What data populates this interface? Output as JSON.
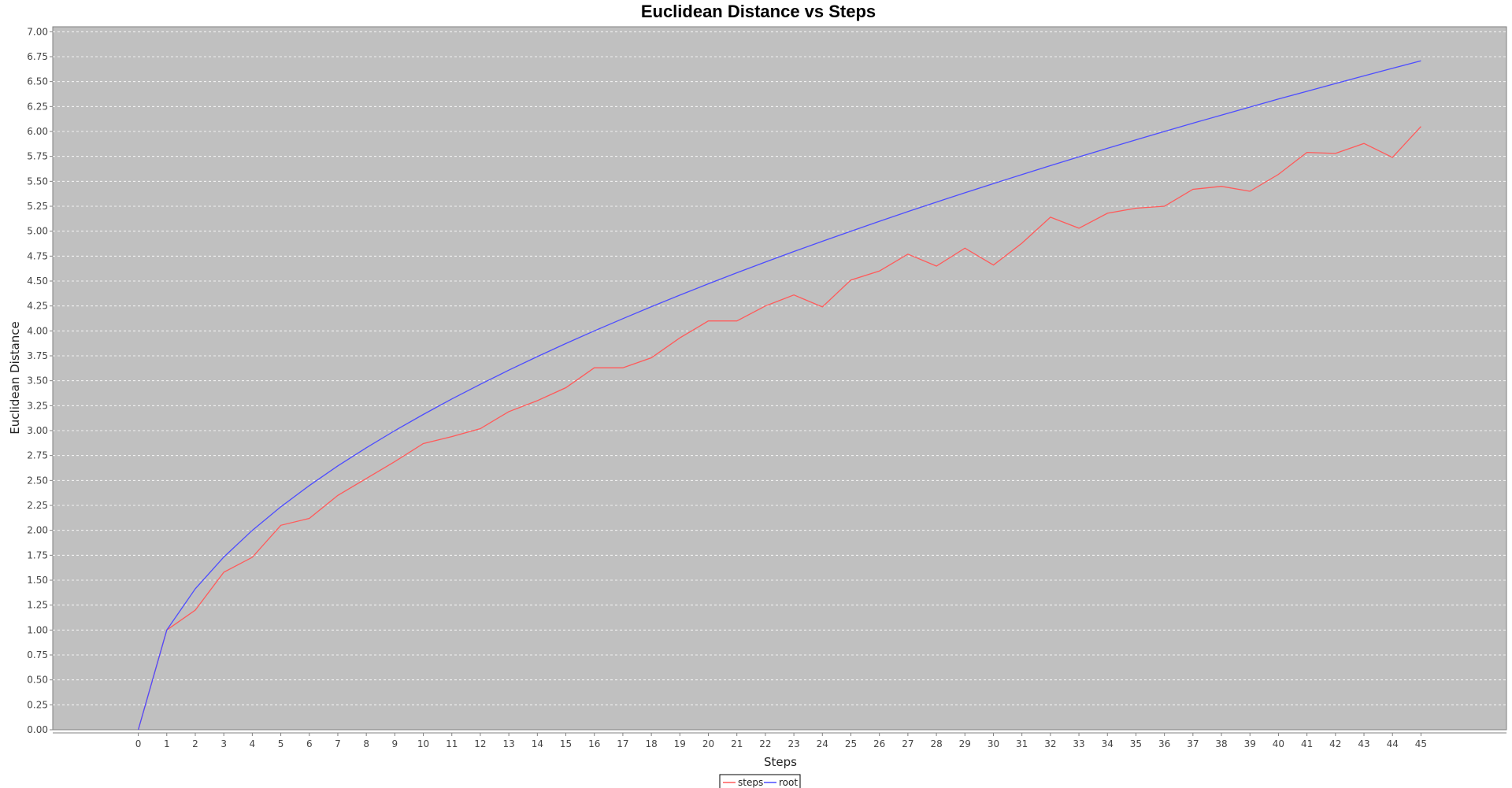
{
  "chart_data": {
    "type": "line",
    "title": "Euclidean Distance vs Steps",
    "xlabel": "Steps",
    "ylabel": "Euclidean Distance",
    "x": [
      0,
      1,
      2,
      3,
      4,
      5,
      6,
      7,
      8,
      9,
      10,
      11,
      12,
      13,
      14,
      15,
      16,
      17,
      18,
      19,
      20,
      21,
      22,
      23,
      24,
      25,
      26,
      27,
      28,
      29,
      30,
      31,
      32,
      33,
      34,
      35,
      36,
      37,
      38,
      39,
      40,
      41,
      42,
      43,
      44,
      45
    ],
    "xlim": [
      -3,
      48
    ],
    "ylim": [
      0,
      7.05
    ],
    "yticks": [
      0,
      0.25,
      0.5,
      0.75,
      1,
      1.25,
      1.5,
      1.75,
      2,
      2.25,
      2.5,
      2.75,
      3,
      3.25,
      3.5,
      3.75,
      4,
      4.25,
      4.5,
      4.75,
      5,
      5.25,
      5.5,
      5.75,
      6,
      6.25,
      6.5,
      6.75,
      7
    ],
    "grid": true,
    "legend_position": "bottom-center",
    "background": "#c0c0c0",
    "series": [
      {
        "name": "steps",
        "color": "#ff5a5a",
        "values": [
          0,
          1.0,
          1.2,
          1.58,
          1.73,
          2.05,
          2.12,
          2.35,
          2.52,
          2.69,
          2.87,
          2.94,
          3.02,
          3.19,
          3.3,
          3.43,
          3.63,
          3.63,
          3.73,
          3.93,
          4.1,
          4.1,
          4.25,
          4.36,
          4.24,
          4.51,
          4.6,
          4.77,
          4.65,
          4.83,
          4.66,
          4.88,
          5.14,
          5.03,
          5.18,
          5.23,
          5.25,
          5.42,
          5.45,
          5.4,
          5.57,
          5.79,
          5.78,
          5.88,
          5.74,
          6.05
        ]
      },
      {
        "name": "root",
        "color": "#4d4dff",
        "values": [
          0,
          1.0,
          1.414,
          1.732,
          2.0,
          2.236,
          2.449,
          2.646,
          2.828,
          3.0,
          3.162,
          3.317,
          3.464,
          3.606,
          3.742,
          3.873,
          4.0,
          4.123,
          4.243,
          4.359,
          4.472,
          4.583,
          4.69,
          4.796,
          4.899,
          5.0,
          5.099,
          5.196,
          5.292,
          5.385,
          5.477,
          5.568,
          5.657,
          5.745,
          5.831,
          5.916,
          6.0,
          6.083,
          6.164,
          6.245,
          6.325,
          6.403,
          6.481,
          6.557,
          6.633,
          6.708
        ]
      }
    ]
  }
}
